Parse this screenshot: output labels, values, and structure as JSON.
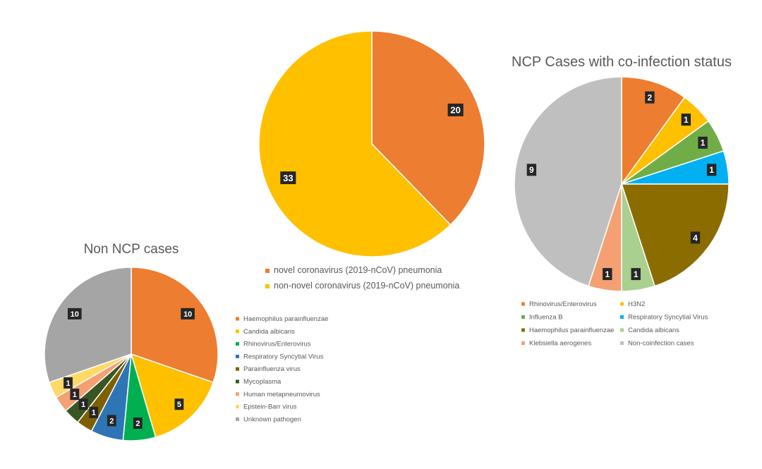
{
  "chart_data": [
    {
      "type": "pie",
      "title": "",
      "categories": [
        "novel coronavirus (2019-nCoV) pneumonia",
        "non-novel coronavirus (2019-nCoV) pneumonia"
      ],
      "values": [
        20,
        33
      ],
      "colors": [
        "#ED7D31",
        "#FFC000"
      ],
      "legend": "bottom"
    },
    {
      "type": "pie",
      "title": "NCP Cases with co-infection status",
      "categories": [
        "Rhinovirus/Enterovirus",
        "H3N2",
        "Influenza B",
        "Respiratory Syncytial Virus",
        "Haemophilus parainfluenzae",
        "Candida albicans",
        "Klebsiella aerogenes",
        "Non-coinfection cases"
      ],
      "values": [
        2,
        1,
        1,
        1,
        4,
        1,
        1,
        9
      ],
      "colors": [
        "#ED7D31",
        "#FFC000",
        "#70AD47",
        "#00B0F0",
        "#8B6C00",
        "#A9D08E",
        "#F4A072",
        "#BFBFBF"
      ],
      "legend": "bottom"
    },
    {
      "type": "pie",
      "title": "Non NCP cases",
      "categories": [
        "Haemophilus parainfluenzae",
        "Candida albicans",
        "Rhinovirus/Enterovirus",
        "Respiratory Syncytial Virus",
        "Parainfluenza virus",
        "Mycoplasma",
        "Human metapneumovirus",
        "Epstein-Barr virus",
        "Unknown pathogen"
      ],
      "values": [
        10,
        5,
        2,
        2,
        1,
        1,
        1,
        1,
        10
      ],
      "colors": [
        "#ED7D31",
        "#FFC000",
        "#00B050",
        "#2E75B6",
        "#7F6000",
        "#375623",
        "#F4A072",
        "#FFD966",
        "#A5A5A5"
      ],
      "legend": "right"
    }
  ]
}
